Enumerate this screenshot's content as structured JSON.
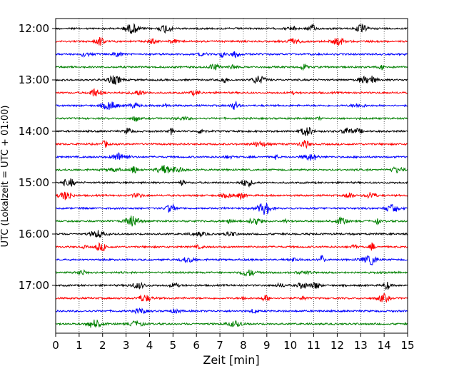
{
  "chart_data": {
    "type": "line",
    "title": "",
    "xlabel": "Zeit  [min]",
    "ylabel": "UTC (Lokalzeit = UTC + 01:00)",
    "xlim": [
      0,
      15
    ],
    "x_ticks": [
      "0",
      "1",
      "2",
      "3",
      "4",
      "5",
      "6",
      "7",
      "8",
      "9",
      "10",
      "11",
      "12",
      "13",
      "14",
      "15"
    ],
    "y_ticks": [
      "12:00",
      "13:00",
      "14:00",
      "15:00",
      "16:00",
      "17:00"
    ],
    "grid": "vertical dotted lines at each minute",
    "trace_interval_minutes": 15,
    "trace_count": 24,
    "color_cycle": [
      "#000000",
      "#ff0000",
      "#0000ff",
      "#008000"
    ],
    "traces": [
      {
        "start": "12:00",
        "color": "#000000"
      },
      {
        "start": "12:15",
        "color": "#ff0000"
      },
      {
        "start": "12:30",
        "color": "#0000ff"
      },
      {
        "start": "12:45",
        "color": "#008000"
      },
      {
        "start": "13:00",
        "color": "#000000"
      },
      {
        "start": "13:15",
        "color": "#ff0000"
      },
      {
        "start": "13:30",
        "color": "#0000ff"
      },
      {
        "start": "13:45",
        "color": "#008000"
      },
      {
        "start": "14:00",
        "color": "#000000"
      },
      {
        "start": "14:15",
        "color": "#ff0000"
      },
      {
        "start": "14:30",
        "color": "#0000ff"
      },
      {
        "start": "14:45",
        "color": "#008000"
      },
      {
        "start": "15:00",
        "color": "#000000"
      },
      {
        "start": "15:15",
        "color": "#ff0000"
      },
      {
        "start": "15:30",
        "color": "#0000ff"
      },
      {
        "start": "15:45",
        "color": "#008000"
      },
      {
        "start": "16:00",
        "color": "#000000"
      },
      {
        "start": "16:15",
        "color": "#ff0000"
      },
      {
        "start": "16:30",
        "color": "#0000ff"
      },
      {
        "start": "16:45",
        "color": "#008000"
      },
      {
        "start": "17:00",
        "color": "#000000"
      },
      {
        "start": "17:15",
        "color": "#ff0000"
      },
      {
        "start": "17:30",
        "color": "#0000ff"
      },
      {
        "start": "17:45",
        "color": "#008000"
      }
    ]
  }
}
